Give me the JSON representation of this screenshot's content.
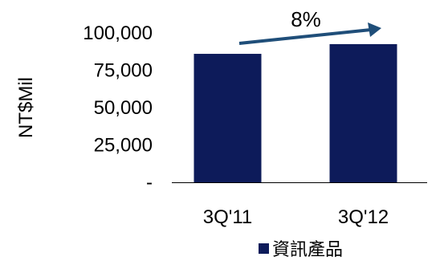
{
  "chart_data": {
    "type": "bar",
    "categories": [
      "3Q'11",
      "3Q'12"
    ],
    "series": [
      {
        "name": "資訊產品",
        "values": [
          86000,
          92500
        ]
      }
    ],
    "ylabel": "NT$Mil",
    "xlabel": "",
    "ylim": [
      0,
      100000
    ],
    "ytick_values": [
      0,
      25000,
      50000,
      75000,
      100000
    ],
    "ytick_labels": [
      "-",
      "25,000",
      "50,000",
      "75,000",
      "100,000"
    ],
    "annotation": "8%",
    "legend_position": "bottom",
    "grid": false,
    "colors": {
      "bar": "#0d1b5a",
      "arrow": "#1f4e79",
      "axis": "#000000"
    }
  }
}
